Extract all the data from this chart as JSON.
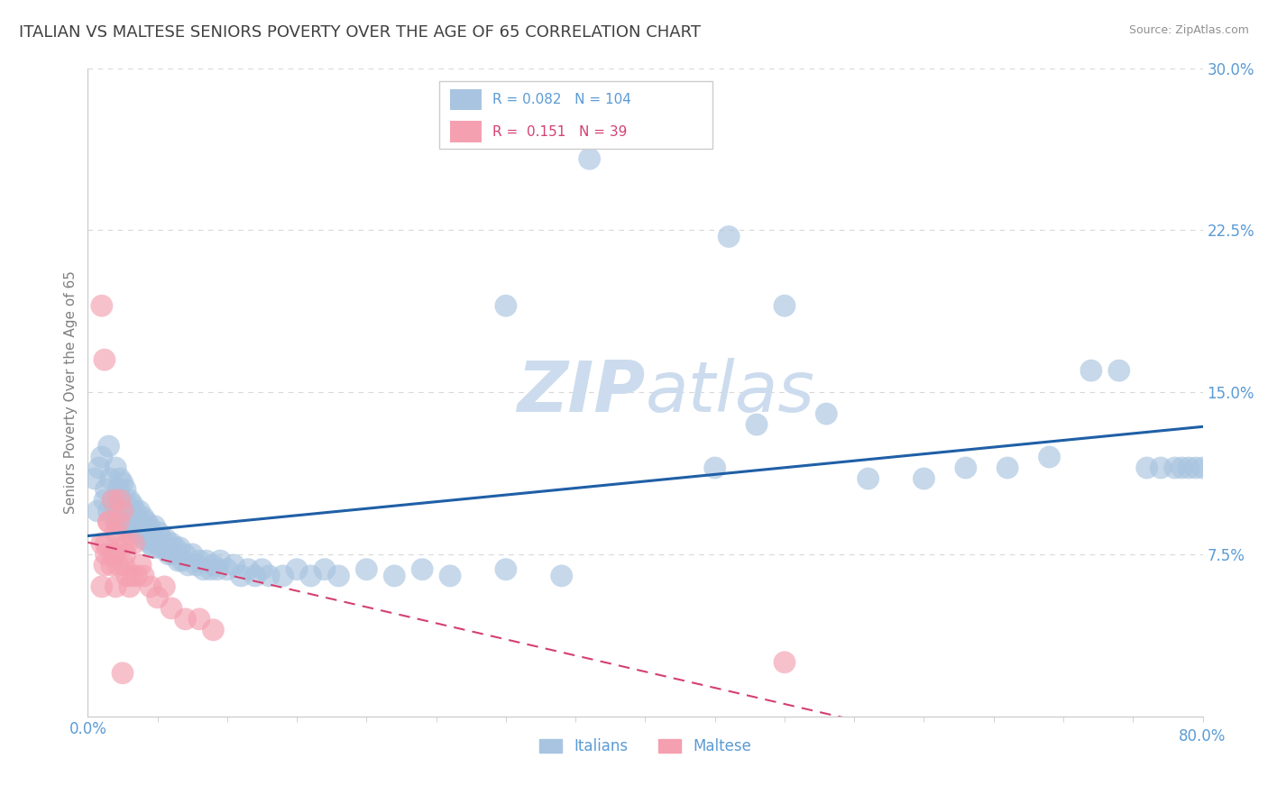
{
  "title": "ITALIAN VS MALTESE SENIORS POVERTY OVER THE AGE OF 65 CORRELATION CHART",
  "source": "Source: ZipAtlas.com",
  "ylabel": "Seniors Poverty Over the Age of 65",
  "xlim": [
    0.0,
    0.8
  ],
  "ylim": [
    0.0,
    0.3
  ],
  "yticks": [
    0.0,
    0.075,
    0.15,
    0.225,
    0.3
  ],
  "yticklabels": [
    "",
    "7.5%",
    "15.0%",
    "22.5%",
    "30.0%"
  ],
  "tick_color": "#5b9bd5",
  "title_color": "#404040",
  "title_fontsize": 13,
  "axis_label_color": "#808080",
  "axis_label_fontsize": 11,
  "watermark_color": "#ccdcee",
  "italian_R": 0.082,
  "italian_N": 104,
  "maltese_R": 0.151,
  "maltese_N": 39,
  "italian_color": "#a8c4e0",
  "maltese_color": "#f4a0b0",
  "italian_line_color": "#1f5fa6",
  "maltese_line_color": "#d44070",
  "grid_color": "#d8d8d8",
  "background_color": "#ffffff",
  "it_x": [
    0.005,
    0.007,
    0.008,
    0.01,
    0.012,
    0.013,
    0.015,
    0.015,
    0.016,
    0.018,
    0.02,
    0.02,
    0.022,
    0.022,
    0.023,
    0.024,
    0.025,
    0.025,
    0.026,
    0.027,
    0.028,
    0.03,
    0.03,
    0.031,
    0.032,
    0.033,
    0.034,
    0.035,
    0.036,
    0.037,
    0.038,
    0.04,
    0.04,
    0.041,
    0.042,
    0.043,
    0.044,
    0.045,
    0.046,
    0.047,
    0.048,
    0.05,
    0.051,
    0.052,
    0.053,
    0.055,
    0.056,
    0.058,
    0.06,
    0.061,
    0.063,
    0.065,
    0.066,
    0.068,
    0.07,
    0.072,
    0.075,
    0.078,
    0.08,
    0.083,
    0.085,
    0.088,
    0.09,
    0.093,
    0.095,
    0.1,
    0.105,
    0.11,
    0.115,
    0.12,
    0.125,
    0.13,
    0.14,
    0.15,
    0.16,
    0.17,
    0.18,
    0.2,
    0.22,
    0.24,
    0.26,
    0.3,
    0.34,
    0.36,
    0.38,
    0.42,
    0.45,
    0.48,
    0.5,
    0.53,
    0.56,
    0.6,
    0.63,
    0.66,
    0.69,
    0.72,
    0.74,
    0.76,
    0.77,
    0.78,
    0.785,
    0.79,
    0.795,
    0.8
  ],
  "it_y": [
    0.11,
    0.095,
    0.115,
    0.12,
    0.1,
    0.105,
    0.095,
    0.125,
    0.11,
    0.1,
    0.09,
    0.115,
    0.105,
    0.095,
    0.11,
    0.1,
    0.09,
    0.108,
    0.095,
    0.105,
    0.098,
    0.088,
    0.1,
    0.092,
    0.098,
    0.088,
    0.095,
    0.09,
    0.085,
    0.095,
    0.088,
    0.082,
    0.092,
    0.085,
    0.09,
    0.082,
    0.088,
    0.08,
    0.085,
    0.078,
    0.088,
    0.08,
    0.085,
    0.078,
    0.082,
    0.078,
    0.082,
    0.075,
    0.08,
    0.075,
    0.078,
    0.072,
    0.078,
    0.072,
    0.075,
    0.07,
    0.075,
    0.07,
    0.072,
    0.068,
    0.072,
    0.068,
    0.07,
    0.068,
    0.072,
    0.068,
    0.07,
    0.065,
    0.068,
    0.065,
    0.068,
    0.065,
    0.065,
    0.068,
    0.065,
    0.068,
    0.065,
    0.068,
    0.065,
    0.068,
    0.065,
    0.068,
    0.065,
    0.26,
    0.22,
    0.145,
    0.115,
    0.135,
    0.19,
    0.14,
    0.11,
    0.11,
    0.115,
    0.115,
    0.12,
    0.16,
    0.16,
    0.115,
    0.115,
    0.115,
    0.115,
    0.115,
    0.115,
    0.115
  ],
  "mt_x": [
    0.005,
    0.008,
    0.01,
    0.01,
    0.012,
    0.013,
    0.013,
    0.015,
    0.015,
    0.017,
    0.018,
    0.018,
    0.02,
    0.02,
    0.02,
    0.022,
    0.022,
    0.023,
    0.025,
    0.025,
    0.026,
    0.027,
    0.028,
    0.028,
    0.03,
    0.032,
    0.033,
    0.035,
    0.038,
    0.04,
    0.045,
    0.05,
    0.055,
    0.06,
    0.07,
    0.08,
    0.09,
    0.48,
    0.5
  ],
  "mt_y": [
    0.095,
    0.065,
    0.06,
    0.08,
    0.07,
    0.075,
    0.08,
    0.075,
    0.09,
    0.07,
    0.075,
    0.1,
    0.06,
    0.075,
    0.085,
    0.07,
    0.09,
    0.1,
    0.08,
    0.095,
    0.07,
    0.075,
    0.065,
    0.08,
    0.06,
    0.065,
    0.08,
    0.065,
    0.07,
    0.065,
    0.06,
    0.055,
    0.06,
    0.05,
    0.045,
    0.045,
    0.04,
    0.035,
    0.035
  ]
}
